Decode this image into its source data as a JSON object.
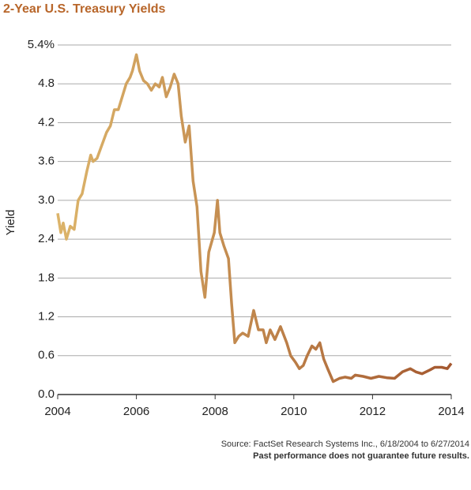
{
  "chart_data": {
    "type": "line",
    "title": "2-Year U.S. Treasury Yields",
    "ylabel": "Yield",
    "source": "Source: FactSet Research Systems Inc., 6/18/2004 to 6/27/2014",
    "note": "Past performance does not guarantee future results.",
    "xlim": [
      2004,
      2014
    ],
    "xticks": [
      2004,
      2006,
      2008,
      2010,
      2012,
      2014
    ],
    "ylim": [
      0,
      5.4
    ],
    "yticks": [
      {
        "value": 0,
        "label": "0.0"
      },
      0.6,
      1.2,
      1.8,
      2.4,
      {
        "value": 3,
        "label": "3.0"
      },
      3.6,
      4.2,
      4.8,
      {
        "value": 5.4,
        "label": "5.4%"
      }
    ],
    "grid": true,
    "gradient": [
      "#dcb46a",
      "#a4582f"
    ],
    "x": [
      2004.0,
      2004.08,
      2004.14,
      2004.22,
      2004.32,
      2004.42,
      2004.52,
      2004.62,
      2004.74,
      2004.84,
      2004.9,
      2005.0,
      2005.12,
      2005.24,
      2005.34,
      2005.44,
      2005.54,
      2005.64,
      2005.74,
      2005.84,
      2005.9,
      2006.0,
      2006.08,
      2006.18,
      2006.28,
      2006.38,
      2006.48,
      2006.58,
      2006.66,
      2006.76,
      2006.86,
      2006.96,
      2007.06,
      2007.14,
      2007.24,
      2007.34,
      2007.44,
      2007.54,
      2007.64,
      2007.74,
      2007.84,
      2007.98,
      2008.06,
      2008.12,
      2008.22,
      2008.34,
      2008.42,
      2008.5,
      2008.6,
      2008.7,
      2008.84,
      2008.98,
      2009.1,
      2009.22,
      2009.3,
      2009.4,
      2009.52,
      2009.66,
      2009.82,
      2009.92,
      2010.04,
      2010.14,
      2010.24,
      2010.34,
      2010.46,
      2010.56,
      2010.66,
      2010.76,
      2010.86,
      2011.0,
      2011.16,
      2011.3,
      2011.46,
      2011.56,
      2011.76,
      2011.96,
      2012.16,
      2012.36,
      2012.56,
      2012.76,
      2012.96,
      2013.1,
      2013.26,
      2013.46,
      2013.58,
      2013.76,
      2013.9,
      2014.0
    ],
    "values": [
      2.8,
      2.5,
      2.65,
      2.4,
      2.6,
      2.55,
      3.0,
      3.1,
      3.45,
      3.7,
      3.6,
      3.65,
      3.85,
      4.05,
      4.15,
      4.4,
      4.4,
      4.6,
      4.8,
      4.9,
      5.0,
      5.25,
      5.0,
      4.85,
      4.8,
      4.7,
      4.8,
      4.75,
      4.9,
      4.6,
      4.75,
      4.95,
      4.8,
      4.3,
      3.9,
      4.15,
      3.3,
      2.9,
      1.9,
      1.5,
      2.2,
      2.5,
      3.0,
      2.5,
      2.3,
      2.1,
      1.4,
      0.8,
      0.9,
      0.95,
      0.9,
      1.3,
      1.0,
      1.0,
      0.8,
      1.0,
      0.85,
      1.05,
      0.8,
      0.6,
      0.5,
      0.4,
      0.45,
      0.6,
      0.75,
      0.7,
      0.8,
      0.55,
      0.4,
      0.2,
      0.25,
      0.27,
      0.25,
      0.3,
      0.28,
      0.25,
      0.28,
      0.26,
      0.25,
      0.35,
      0.4,
      0.35,
      0.32,
      0.38,
      0.42,
      0.42,
      0.4,
      0.48
    ]
  }
}
